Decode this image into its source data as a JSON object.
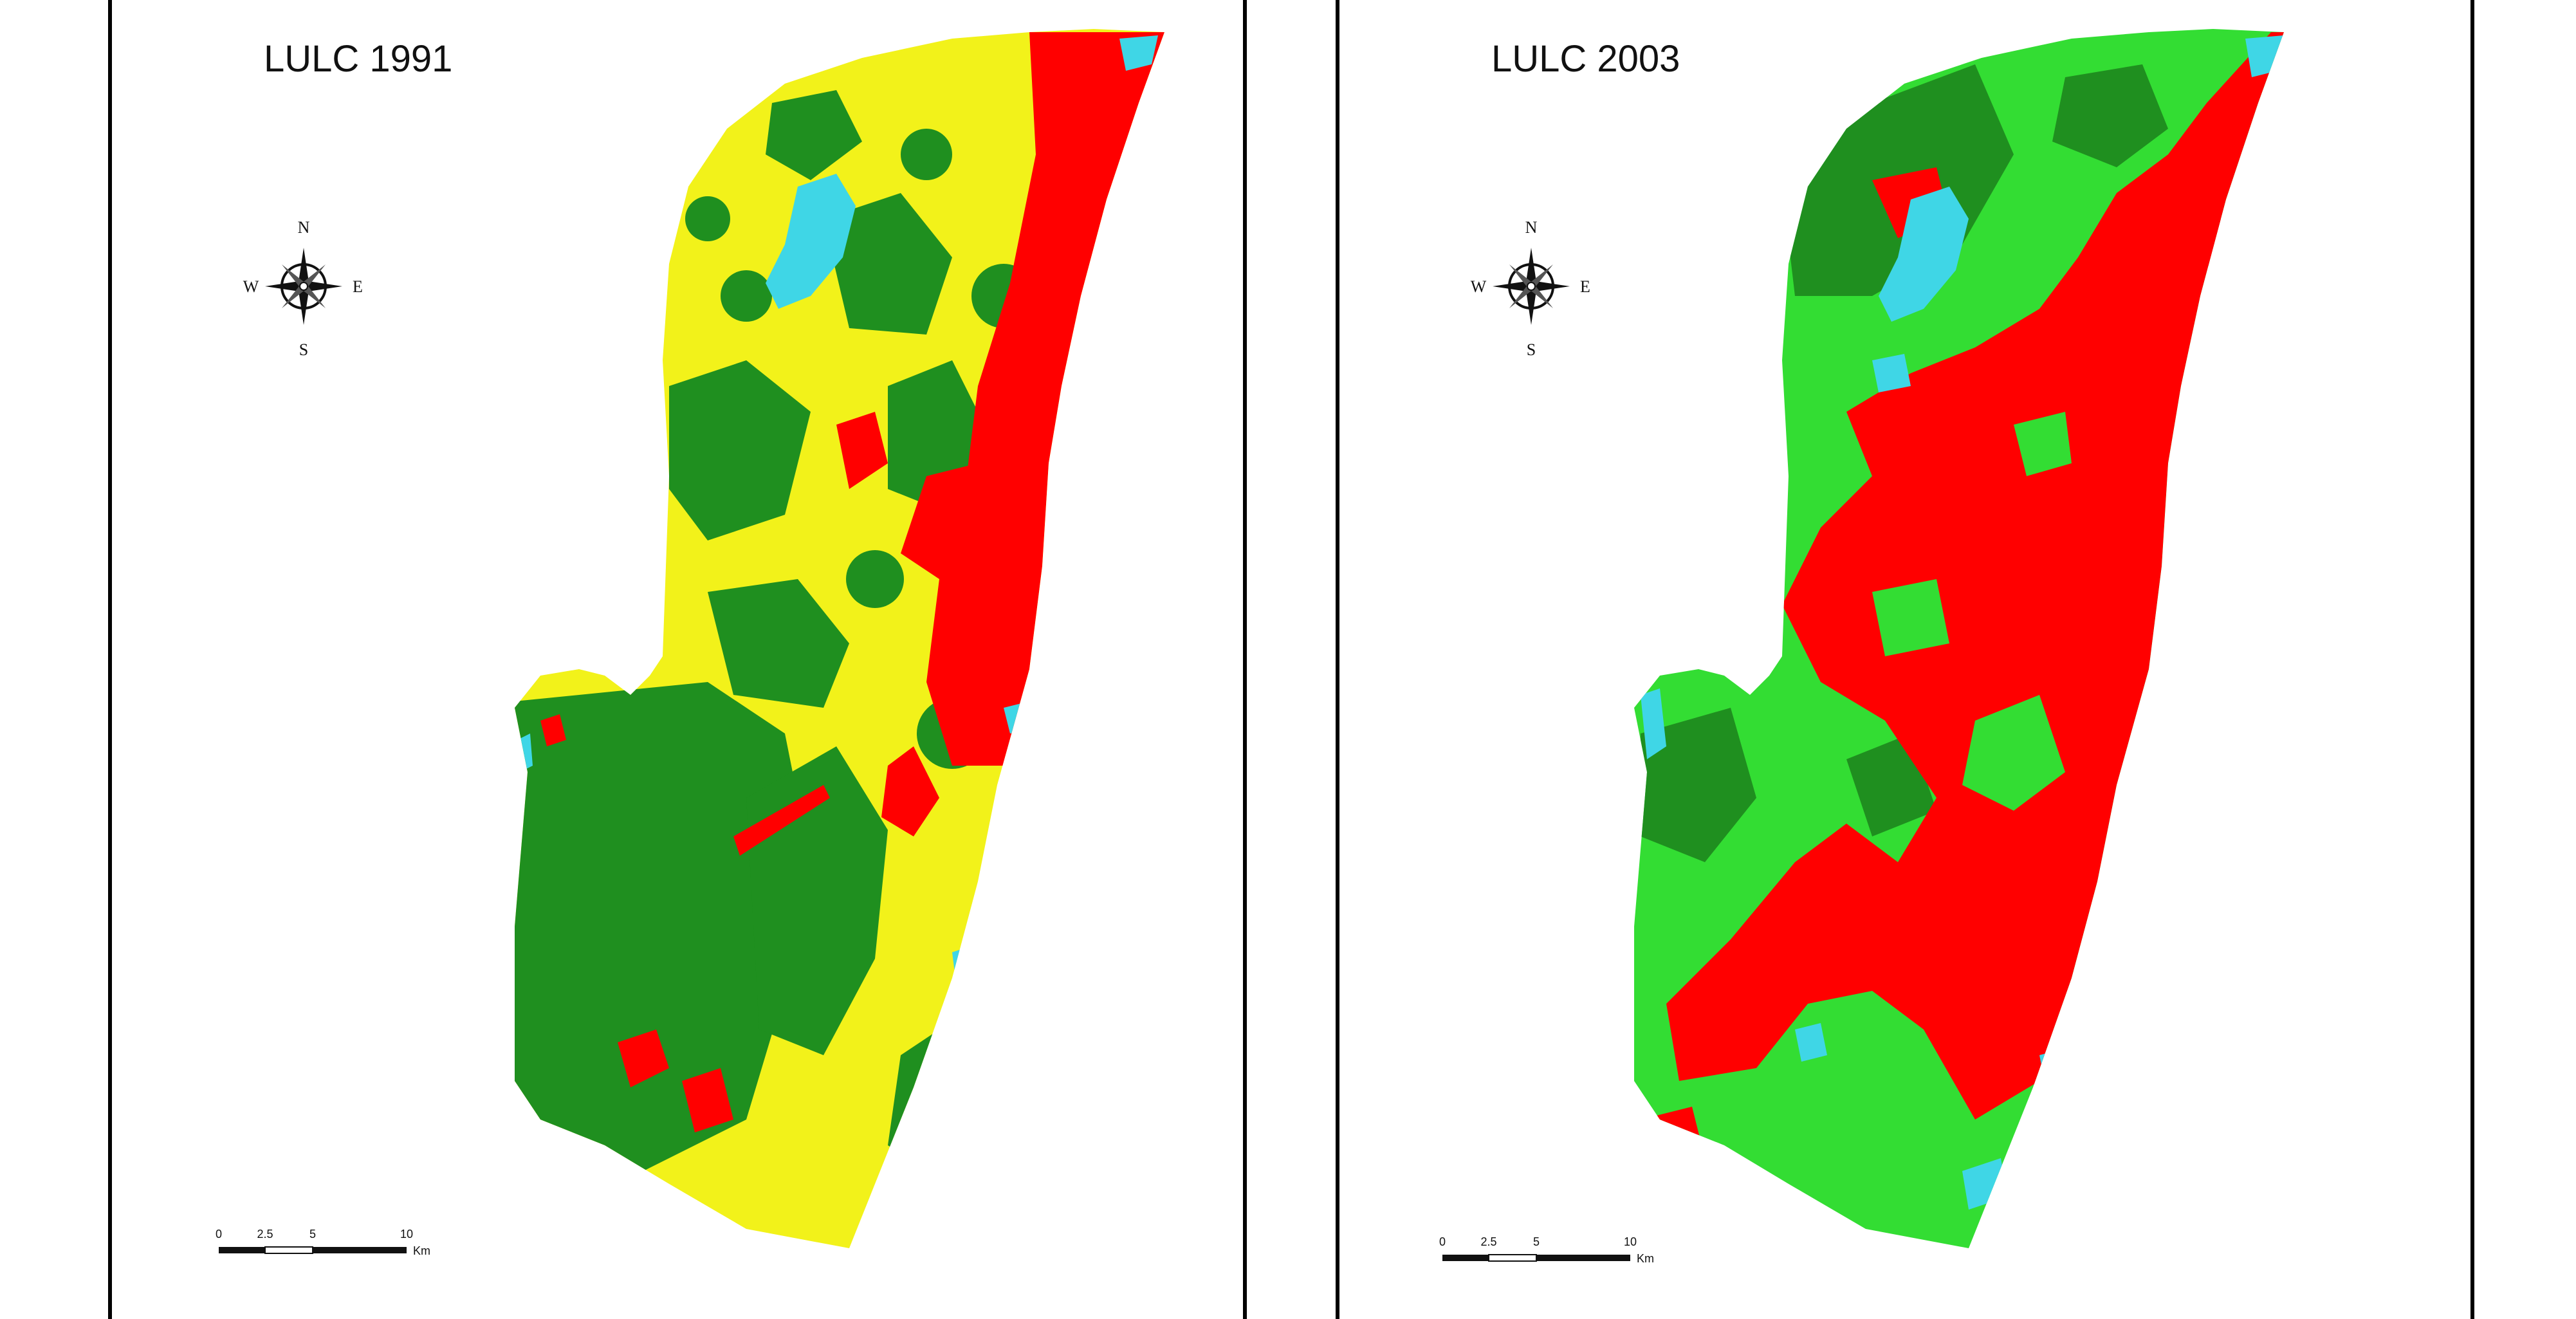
{
  "panels": [
    {
      "title": "LULC 1991",
      "scale_bar": {
        "ticks": [
          "0",
          "2.5",
          "5",
          "10"
        ],
        "unit": "Km"
      },
      "compass": {
        "north": "N",
        "south": "S",
        "east": "E",
        "west": "W",
        "icon": "compass-rose-icon"
      }
    },
    {
      "title": "LULC 2003",
      "scale_bar": {
        "ticks": [
          "0",
          "2.5",
          "5",
          "10"
        ],
        "unit": "Km"
      },
      "compass": {
        "north": "N",
        "south": "S",
        "east": "E",
        "west": "W",
        "icon": "compass-rose-icon"
      }
    }
  ],
  "colors": {
    "built_up": "#ff0000",
    "vegetation_dense": "#1f8f1f",
    "vegetation_light": "#33dd33",
    "open_land": "#f2f21a",
    "water": "#3fd6e6"
  }
}
